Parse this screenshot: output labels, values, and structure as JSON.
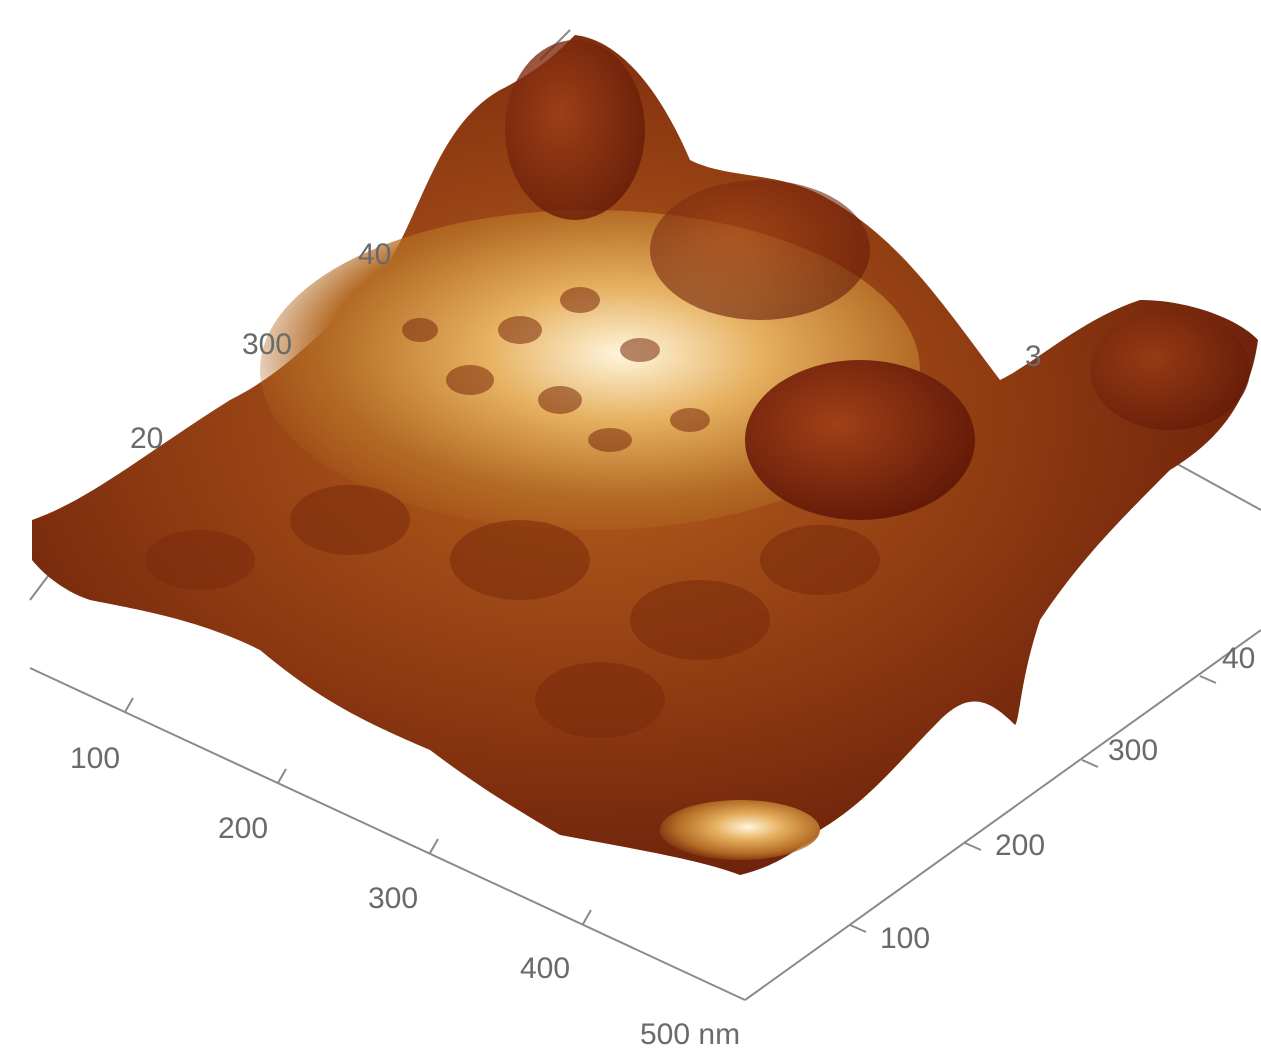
{
  "axes": {
    "front": {
      "labels": [
        "100",
        "200",
        "300",
        "400",
        "500 nm"
      ]
    },
    "right": {
      "labels": [
        "100",
        "200",
        "300",
        "40"
      ]
    },
    "back": {
      "labels": [
        "40",
        "300",
        "20",
        "3"
      ]
    }
  }
}
